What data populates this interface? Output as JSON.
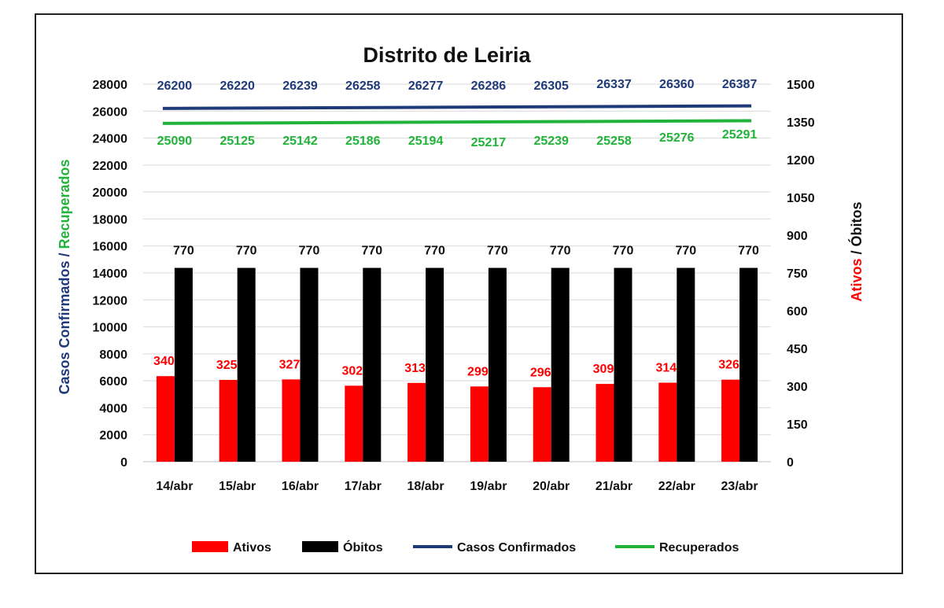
{
  "chart_data": {
    "type": "bar",
    "title": "Distrito de Leiria",
    "categories": [
      "14/abr",
      "15/abr",
      "16/abr",
      "17/abr",
      "18/abr",
      "19/abr",
      "20/abr",
      "21/abr",
      "22/abr",
      "23/abr"
    ],
    "left_axis": {
      "title_part1": "Casos Confirmados",
      "title_sep": " / ",
      "title_part2": "Recuperados",
      "ticks": [
        0,
        2000,
        4000,
        6000,
        8000,
        10000,
        12000,
        14000,
        16000,
        18000,
        20000,
        22000,
        24000,
        26000,
        28000
      ],
      "ylim": [
        0,
        28000
      ]
    },
    "right_axis": {
      "title_part1": "Ativos",
      "title_sep": " / ",
      "title_part2": "Óbitos",
      "ticks": [
        0,
        150,
        300,
        450,
        600,
        750,
        900,
        1050,
        1200,
        1350,
        1500
      ],
      "ylim": [
        0,
        1500
      ]
    },
    "series": [
      {
        "name": "Ativos",
        "kind": "bar",
        "axis": "right",
        "color": "#ff0000",
        "label_color": "#ff0000",
        "values": [
          340,
          325,
          327,
          302,
          313,
          299,
          296,
          309,
          314,
          326
        ]
      },
      {
        "name": "Óbitos",
        "kind": "bar",
        "axis": "right",
        "color": "#000000",
        "label_color": "#111111",
        "values": [
          770,
          770,
          770,
          770,
          770,
          770,
          770,
          770,
          770,
          770
        ]
      },
      {
        "name": "Casos Confirmados",
        "kind": "line",
        "axis": "left",
        "color": "#1f3a78",
        "label_color": "#1f3a78",
        "values": [
          26200,
          26220,
          26239,
          26258,
          26277,
          26286,
          26305,
          26337,
          26360,
          26387
        ]
      },
      {
        "name": "Recuperados",
        "kind": "line",
        "axis": "left",
        "color": "#22b33a",
        "label_color": "#22b33a",
        "values": [
          25090,
          25125,
          25142,
          25186,
          25194,
          25217,
          25239,
          25258,
          25276,
          25291
        ]
      }
    ],
    "grid": true,
    "legend_position": "bottom"
  }
}
